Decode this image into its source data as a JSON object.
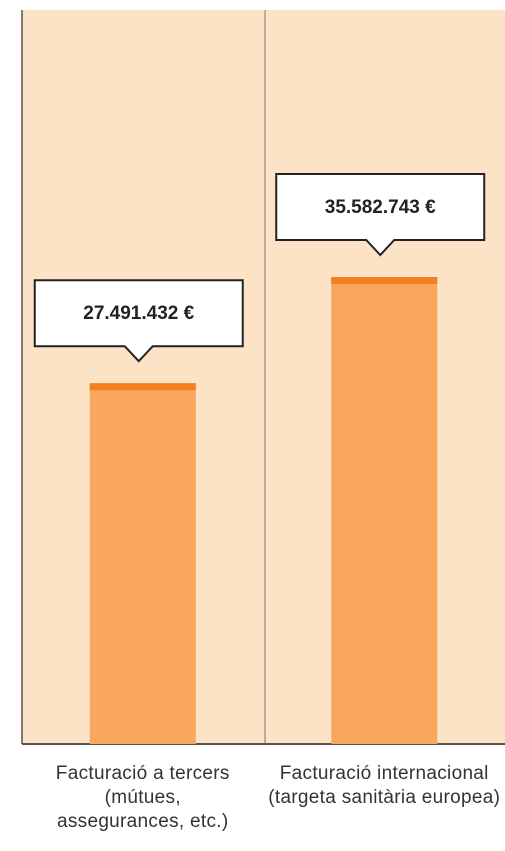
{
  "chart_data": {
    "type": "bar",
    "categories": [
      "Facturació a tercers (mútues, assegurances, etc.)",
      "Facturació internacional (targeta sanitària europea)"
    ],
    "values": [
      27491432,
      35582743
    ],
    "value_labels": [
      "27.491.432 €",
      "35.582.743 €"
    ],
    "color": "#f9a75e"
  }
}
